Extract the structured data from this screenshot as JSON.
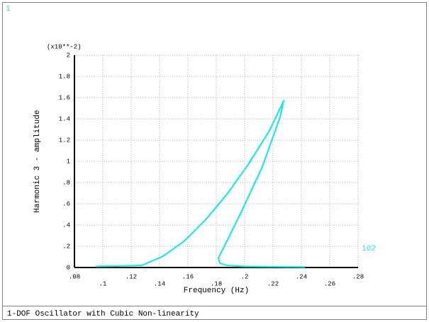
{
  "window_number": "1",
  "chart_data": {
    "type": "line",
    "title": "1-DOF Oscillator with Cubic Non-linearity",
    "x_label": "Frequency (Hz)",
    "y_label": "Harmonic 3 - amplitude",
    "y_scale_label": "(x10**-2)",
    "x": [
      0.095,
      0.1275,
      0.1425,
      0.1575,
      0.1725,
      0.1875,
      0.2025,
      0.2175,
      0.2275,
      0.225,
      0.2125,
      0.1975,
      0.1875,
      0.1815,
      0.1825,
      0.1875,
      0.2,
      0.2425
    ],
    "series": [
      {
        "name": "102",
        "color": "#22e6e6",
        "values": [
          0.01,
          0.02,
          0.107,
          0.25,
          0.45,
          0.69,
          0.97,
          1.29,
          1.57,
          1.42,
          0.95,
          0.52,
          0.25,
          0.09,
          0.04,
          0.02,
          0.01,
          0.005
        ]
      }
    ],
    "xlim": [
      0.08,
      0.28
    ],
    "xticks": [
      {
        "value": 0.08,
        "label": ".08"
      },
      {
        "value": 0.1,
        "label": ".1"
      },
      {
        "value": 0.12,
        "label": ".12"
      },
      {
        "value": 0.14,
        "label": ".14"
      },
      {
        "value": 0.16,
        "label": ".16"
      },
      {
        "value": 0.18,
        "label": ".18"
      },
      {
        "value": 0.2,
        "label": ".2"
      },
      {
        "value": 0.22,
        "label": ".22"
      },
      {
        "value": 0.24,
        "label": ".24"
      },
      {
        "value": 0.26,
        "label": ".26"
      },
      {
        "value": 0.28,
        "label": ".28"
      }
    ],
    "ylim": [
      0,
      2
    ],
    "yticks": [
      0,
      {
        "value": 0.2,
        "label": ".2"
      },
      {
        "value": 0.4,
        "label": ".4"
      },
      {
        "value": 0.6,
        "label": ".6"
      },
      {
        "value": 0.8,
        "label": ".8"
      },
      1,
      1.2,
      1.4,
      1.6,
      1.8,
      2
    ],
    "grid": true
  }
}
